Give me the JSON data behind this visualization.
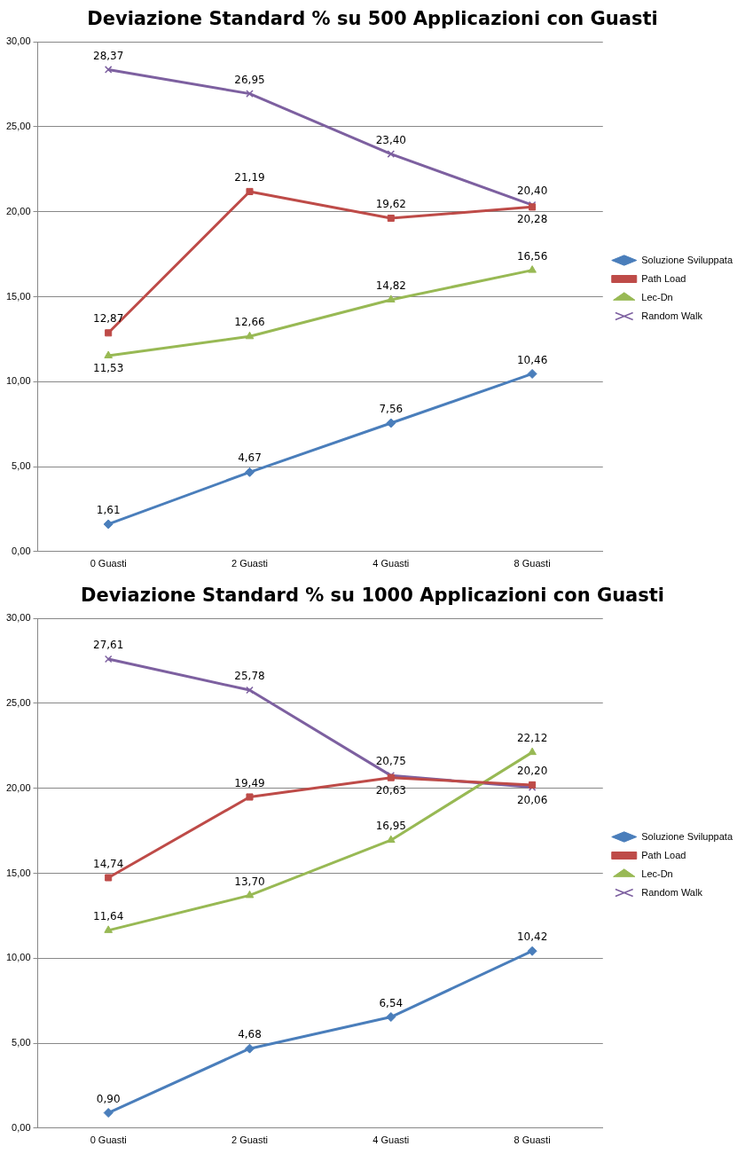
{
  "chart_data": [
    {
      "type": "line",
      "title": "Deviazione Standard % su 500 Applicazioni con Guasti",
      "categories": [
        "0 Guasti",
        "2 Guasti",
        "4 Guasti",
        "8 Guasti"
      ],
      "ylim": [
        0,
        30
      ],
      "yticks": [
        {
          "value": 0,
          "label": "0,00"
        },
        {
          "value": 5,
          "label": "5,00"
        },
        {
          "value": 10,
          "label": "10,00"
        },
        {
          "value": 15,
          "label": "15,00"
        },
        {
          "value": 20,
          "label": "20,00"
        },
        {
          "value": 25,
          "label": "25,00"
        },
        {
          "value": 30,
          "label": "30,00"
        }
      ],
      "grid": "y",
      "legend": "right",
      "series": [
        {
          "name": "Soluzione Sviluppata",
          "color": "#4a7ebb",
          "marker": "diamond",
          "values": [
            1.61,
            4.67,
            7.56,
            10.46
          ],
          "value_labels": [
            "1,61",
            "4,67",
            "7,56",
            "10,46"
          ]
        },
        {
          "name": "Path Load",
          "color": "#be4b48",
          "marker": "square",
          "values": [
            12.87,
            21.19,
            19.62,
            20.28
          ],
          "value_labels": [
            "12,87",
            "21,19",
            "19,62",
            "20,28"
          ]
        },
        {
          "name": "Lec-Dn",
          "color": "#98b954",
          "marker": "triangle",
          "values": [
            11.53,
            12.66,
            14.82,
            16.56
          ],
          "value_labels": [
            "11,53",
            "12,66",
            "14,82",
            "16,56"
          ]
        },
        {
          "name": "Random Walk",
          "color": "#7d60a0",
          "marker": "cross",
          "values": [
            28.37,
            26.95,
            23.4,
            20.4
          ],
          "value_labels": [
            "28,37",
            "26,95",
            "23,40",
            "20,40"
          ]
        }
      ]
    },
    {
      "type": "line",
      "title": "Deviazione Standard % su 1000 Applicazioni con Guasti",
      "categories": [
        "0 Guasti",
        "2 Guasti",
        "4 Guasti",
        "8 Guasti"
      ],
      "ylim": [
        0,
        30
      ],
      "yticks": [
        {
          "value": 0,
          "label": "0,00"
        },
        {
          "value": 5,
          "label": "5,00"
        },
        {
          "value": 10,
          "label": "10,00"
        },
        {
          "value": 15,
          "label": "15,00"
        },
        {
          "value": 20,
          "label": "20,00"
        },
        {
          "value": 25,
          "label": "25,00"
        },
        {
          "value": 30,
          "label": "30,00"
        }
      ],
      "grid": "y",
      "legend": "right",
      "series": [
        {
          "name": "Soluzione Sviluppata",
          "color": "#4a7ebb",
          "marker": "diamond",
          "values": [
            0.9,
            4.68,
            6.54,
            10.42
          ],
          "value_labels": [
            "0,90",
            "4,68",
            "6,54",
            "10,42"
          ]
        },
        {
          "name": "Path Load",
          "color": "#be4b48",
          "marker": "square",
          "values": [
            14.74,
            19.49,
            20.63,
            20.2
          ],
          "value_labels": [
            "14,74",
            "19,49",
            "20,63",
            "20,20"
          ]
        },
        {
          "name": "Lec-Dn",
          "color": "#98b954",
          "marker": "triangle",
          "values": [
            11.64,
            13.7,
            16.95,
            22.12
          ],
          "value_labels": [
            "11,64",
            "13,70",
            "16,95",
            "22,12"
          ]
        },
        {
          "name": "Random Walk",
          "color": "#7d60a0",
          "marker": "cross",
          "values": [
            27.61,
            25.78,
            20.75,
            20.06
          ],
          "value_labels": [
            "27,61",
            "25,78",
            "20,75",
            "20,06"
          ]
        }
      ]
    }
  ]
}
